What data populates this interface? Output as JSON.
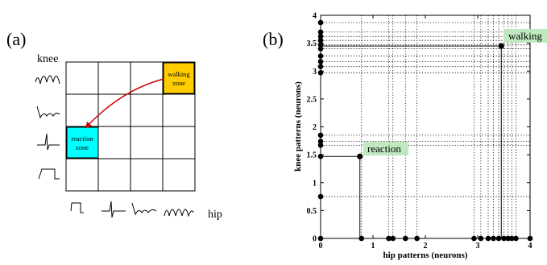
{
  "panel_a": {
    "label": "(a)",
    "y_axis_label": "knee",
    "x_axis_label": "hip",
    "walking_zone": {
      "line1": "walking",
      "line2": "zone",
      "color": "#FFCC00"
    },
    "reaction_zone": {
      "line1": "reaction",
      "line2": "zone",
      "color": "#00FFFF"
    },
    "arrow_color": "#CC0000",
    "knee_waveform_icons": [
      "knee-walking-waveform-icon",
      "knee-oscillation-waveform-icon",
      "knee-spike-waveform-icon",
      "knee-step-waveform-icon"
    ],
    "hip_waveform_icons": [
      "hip-step-waveform-icon",
      "hip-spike-waveform-icon",
      "hip-oscillation-waveform-icon",
      "hip-walking-waveform-icon"
    ]
  },
  "panel_b": {
    "label": "(b)",
    "xlabel": "hip patterns (neurons)",
    "ylabel": "knee patterns (neurons)",
    "xlim": [
      0,
      4
    ],
    "ylim": [
      0,
      4
    ],
    "x_ticks": [
      "0",
      "1",
      "2",
      "3",
      "4"
    ],
    "y_ticks": [
      "0",
      "0.5",
      "1",
      "1.5",
      "2",
      "2.5",
      "3",
      "3.5",
      "4"
    ],
    "walking_label": "walking",
    "reaction_label": "reaction",
    "label_bg_color": "#BFE8BF"
  },
  "chart_data": {
    "type": "scatter",
    "xlabel": "hip patterns (neurons)",
    "ylabel": "knee patterns (neurons)",
    "xlim": [
      0,
      4
    ],
    "ylim": [
      0,
      4
    ],
    "grid": false,
    "x_axis_points": [
      0,
      0.78,
      1.3,
      1.38,
      1.62,
      1.84,
      2.93,
      3.06,
      3.2,
      3.3,
      3.4,
      3.5,
      3.58,
      3.65,
      3.73,
      4.0
    ],
    "y_axis_points": [
      0.75,
      1.47,
      1.67,
      1.74,
      1.85,
      2.97,
      3.08,
      3.17,
      3.27,
      3.4,
      3.47,
      3.55,
      3.62,
      3.7,
      3.87
    ],
    "highlighted_points": [
      {
        "label": "reaction",
        "x": 0.75,
        "y": 1.47
      },
      {
        "label": "walking",
        "x": 3.45,
        "y": 3.45
      }
    ],
    "vertical_dotted_lines_x": [
      0.78,
      1.3,
      1.38,
      1.62,
      1.84,
      2.93,
      3.06,
      3.2,
      3.3,
      3.4,
      3.5,
      3.58,
      3.65,
      3.73
    ],
    "horizontal_dotted_lines_y": [
      0.75,
      1.67,
      1.74,
      1.85,
      2.97,
      3.08,
      3.17,
      3.27,
      3.4,
      3.47,
      3.55,
      3.62,
      3.7,
      3.87
    ]
  }
}
